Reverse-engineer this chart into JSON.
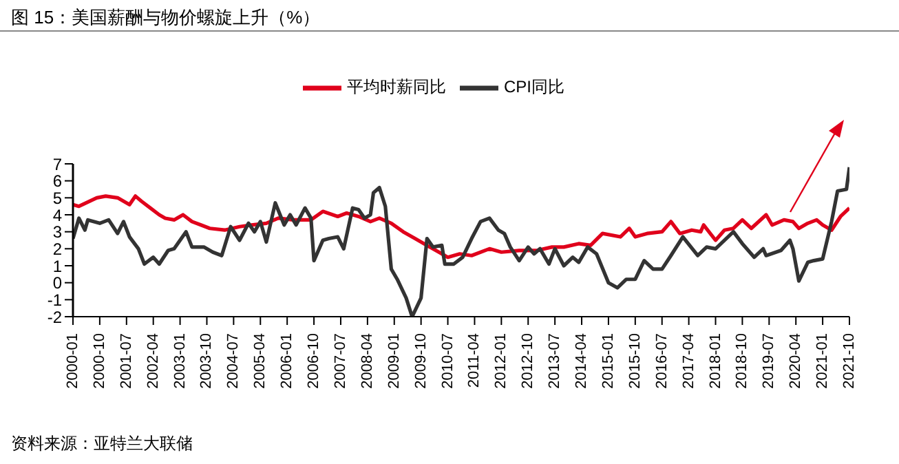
{
  "chart_data": {
    "type": "line",
    "title": "图 15：美国薪酬与物价螺旋上升（%）",
    "annotations": [
      "资料来源：亚特兰大联储"
    ],
    "legend": "top",
    "marker": "none",
    "line_style": "solid",
    "xlim": [
      "2000-01",
      "2021-10"
    ],
    "xticks": [
      "2000-01",
      "2000-10",
      "2001-07",
      "2002-04",
      "2003-01",
      "2003-10",
      "2004-07",
      "2005-04",
      "2006-01",
      "2006-10",
      "2007-07",
      "2008-04",
      "2009-01",
      "2009-10",
      "2010-07",
      "2011-04",
      "2012-01",
      "2012-10",
      "2013-07",
      "2014-04",
      "2015-01",
      "2015-10",
      "2016-07",
      "2017-04",
      "2018-01",
      "2018-10",
      "2019-07",
      "2020-04",
      "2021-01",
      "2021-10"
    ],
    "ylim": [
      -2,
      7
    ],
    "yticks": [
      -2,
      -1,
      0,
      1,
      2,
      3,
      4,
      5,
      6,
      7
    ],
    "series": [
      {
        "name": "平均时薪同比",
        "color": "#e0001b",
        "x": [
          "2000-01",
          "2000-03",
          "2000-09",
          "2000-12",
          "2001-04",
          "2001-08",
          "2001-10",
          "2001-12",
          "2002-03",
          "2002-06",
          "2002-08",
          "2002-11",
          "2003-02",
          "2003-05",
          "2003-08",
          "2003-11",
          "2004-04",
          "2004-09",
          "2005-01",
          "2005-06",
          "2005-10",
          "2006-03",
          "2006-09",
          "2007-01",
          "2007-06",
          "2007-09",
          "2008-01",
          "2008-05",
          "2008-08",
          "2008-12",
          "2009-04",
          "2009-08",
          "2009-12",
          "2010-04",
          "2010-07",
          "2010-11",
          "2011-03",
          "2011-09",
          "2012-01",
          "2012-07",
          "2013-01",
          "2013-06",
          "2013-10",
          "2014-03",
          "2014-07",
          "2014-11",
          "2015-05",
          "2015-08",
          "2015-10",
          "2016-02",
          "2016-07",
          "2016-10",
          "2017-01",
          "2017-05",
          "2017-08",
          "2017-09",
          "2018-01",
          "2018-04",
          "2018-07",
          "2018-10",
          "2019-01",
          "2019-06",
          "2019-08",
          "2019-12",
          "2020-03",
          "2020-05",
          "2020-08",
          "2020-11",
          "2021-01",
          "2021-04",
          "2021-07",
          "2021-10"
        ],
        "values": [
          4.6,
          4.5,
          5.0,
          5.1,
          5.0,
          4.6,
          5.1,
          4.8,
          4.4,
          4.0,
          3.8,
          3.7,
          4.0,
          3.6,
          3.4,
          3.2,
          3.1,
          3.3,
          3.4,
          3.5,
          3.8,
          3.7,
          3.7,
          4.2,
          3.9,
          4.1,
          3.9,
          3.6,
          3.8,
          3.5,
          3.0,
          2.6,
          2.2,
          1.8,
          1.5,
          1.7,
          1.6,
          2.0,
          1.8,
          1.9,
          1.9,
          2.1,
          2.1,
          2.3,
          2.2,
          2.9,
          2.7,
          3.2,
          2.7,
          2.9,
          3.0,
          3.6,
          2.9,
          3.1,
          3.0,
          3.4,
          2.5,
          3.1,
          3.2,
          3.7,
          3.2,
          4.0,
          3.4,
          3.7,
          3.6,
          3.2,
          3.5,
          3.7,
          3.4,
          3.1,
          3.9,
          4.4
        ]
      },
      {
        "name": "CPI同比",
        "color": "#333333",
        "x": [
          "2000-01",
          "2000-03",
          "2000-05",
          "2000-06",
          "2000-10",
          "2001-01",
          "2001-04",
          "2001-06",
          "2001-08",
          "2001-11",
          "2002-01",
          "2002-04",
          "2002-06",
          "2002-09",
          "2002-11",
          "2003-03",
          "2003-05",
          "2003-09",
          "2003-12",
          "2004-03",
          "2004-06",
          "2004-09",
          "2004-12",
          "2005-02",
          "2005-04",
          "2005-06",
          "2005-09",
          "2005-12",
          "2006-02",
          "2006-04",
          "2006-07",
          "2006-09",
          "2006-10",
          "2007-01",
          "2007-03",
          "2007-06",
          "2007-08",
          "2007-11",
          "2008-01",
          "2008-03",
          "2008-05",
          "2008-06",
          "2008-08",
          "2008-10",
          "2008-12",
          "2009-02",
          "2009-05",
          "2009-07",
          "2009-10",
          "2009-12",
          "2010-02",
          "2010-05",
          "2010-06",
          "2010-09",
          "2010-12",
          "2011-03",
          "2011-06",
          "2011-09",
          "2011-12",
          "2012-02",
          "2012-04",
          "2012-07",
          "2012-10",
          "2012-12",
          "2013-02",
          "2013-05",
          "2013-07",
          "2013-10",
          "2014-01",
          "2014-03",
          "2014-06",
          "2014-09",
          "2015-01",
          "2015-04",
          "2015-07",
          "2015-10",
          "2016-01",
          "2016-04",
          "2016-07",
          "2016-10",
          "2017-02",
          "2017-07",
          "2017-10",
          "2018-01",
          "2018-07",
          "2018-10",
          "2019-02",
          "2019-05",
          "2019-06",
          "2019-11",
          "2020-02",
          "2020-03",
          "2020-05",
          "2020-08",
          "2020-10",
          "2021-01",
          "2021-04",
          "2021-06",
          "2021-09",
          "2021-10"
        ],
        "values": [
          2.6,
          3.8,
          3.1,
          3.7,
          3.5,
          3.7,
          2.9,
          3.6,
          2.7,
          2.0,
          1.1,
          1.5,
          1.1,
          1.9,
          2.0,
          3.0,
          2.1,
          2.1,
          1.8,
          1.6,
          3.3,
          2.5,
          3.5,
          3.0,
          3.6,
          2.4,
          4.7,
          3.4,
          4.0,
          3.4,
          4.4,
          3.8,
          1.3,
          2.5,
          2.6,
          2.7,
          2.0,
          4.4,
          4.3,
          3.8,
          4.0,
          5.3,
          5.6,
          4.5,
          0.8,
          0.2,
          -0.9,
          -2.0,
          -0.9,
          2.6,
          2.1,
          2.2,
          1.1,
          1.1,
          1.5,
          2.6,
          3.6,
          3.8,
          3.1,
          2.9,
          2.1,
          1.3,
          2.1,
          1.7,
          2.0,
          1.1,
          2.0,
          1.0,
          1.5,
          1.2,
          2.1,
          1.7,
          0.0,
          -0.3,
          0.2,
          0.2,
          1.3,
          0.8,
          0.8,
          1.6,
          2.7,
          1.6,
          2.1,
          2.0,
          3.0,
          2.3,
          1.5,
          2.0,
          1.6,
          1.9,
          2.5,
          2.0,
          0.1,
          1.2,
          1.3,
          1.4,
          3.6,
          5.4,
          5.5,
          6.8
        ]
      }
    ]
  }
}
